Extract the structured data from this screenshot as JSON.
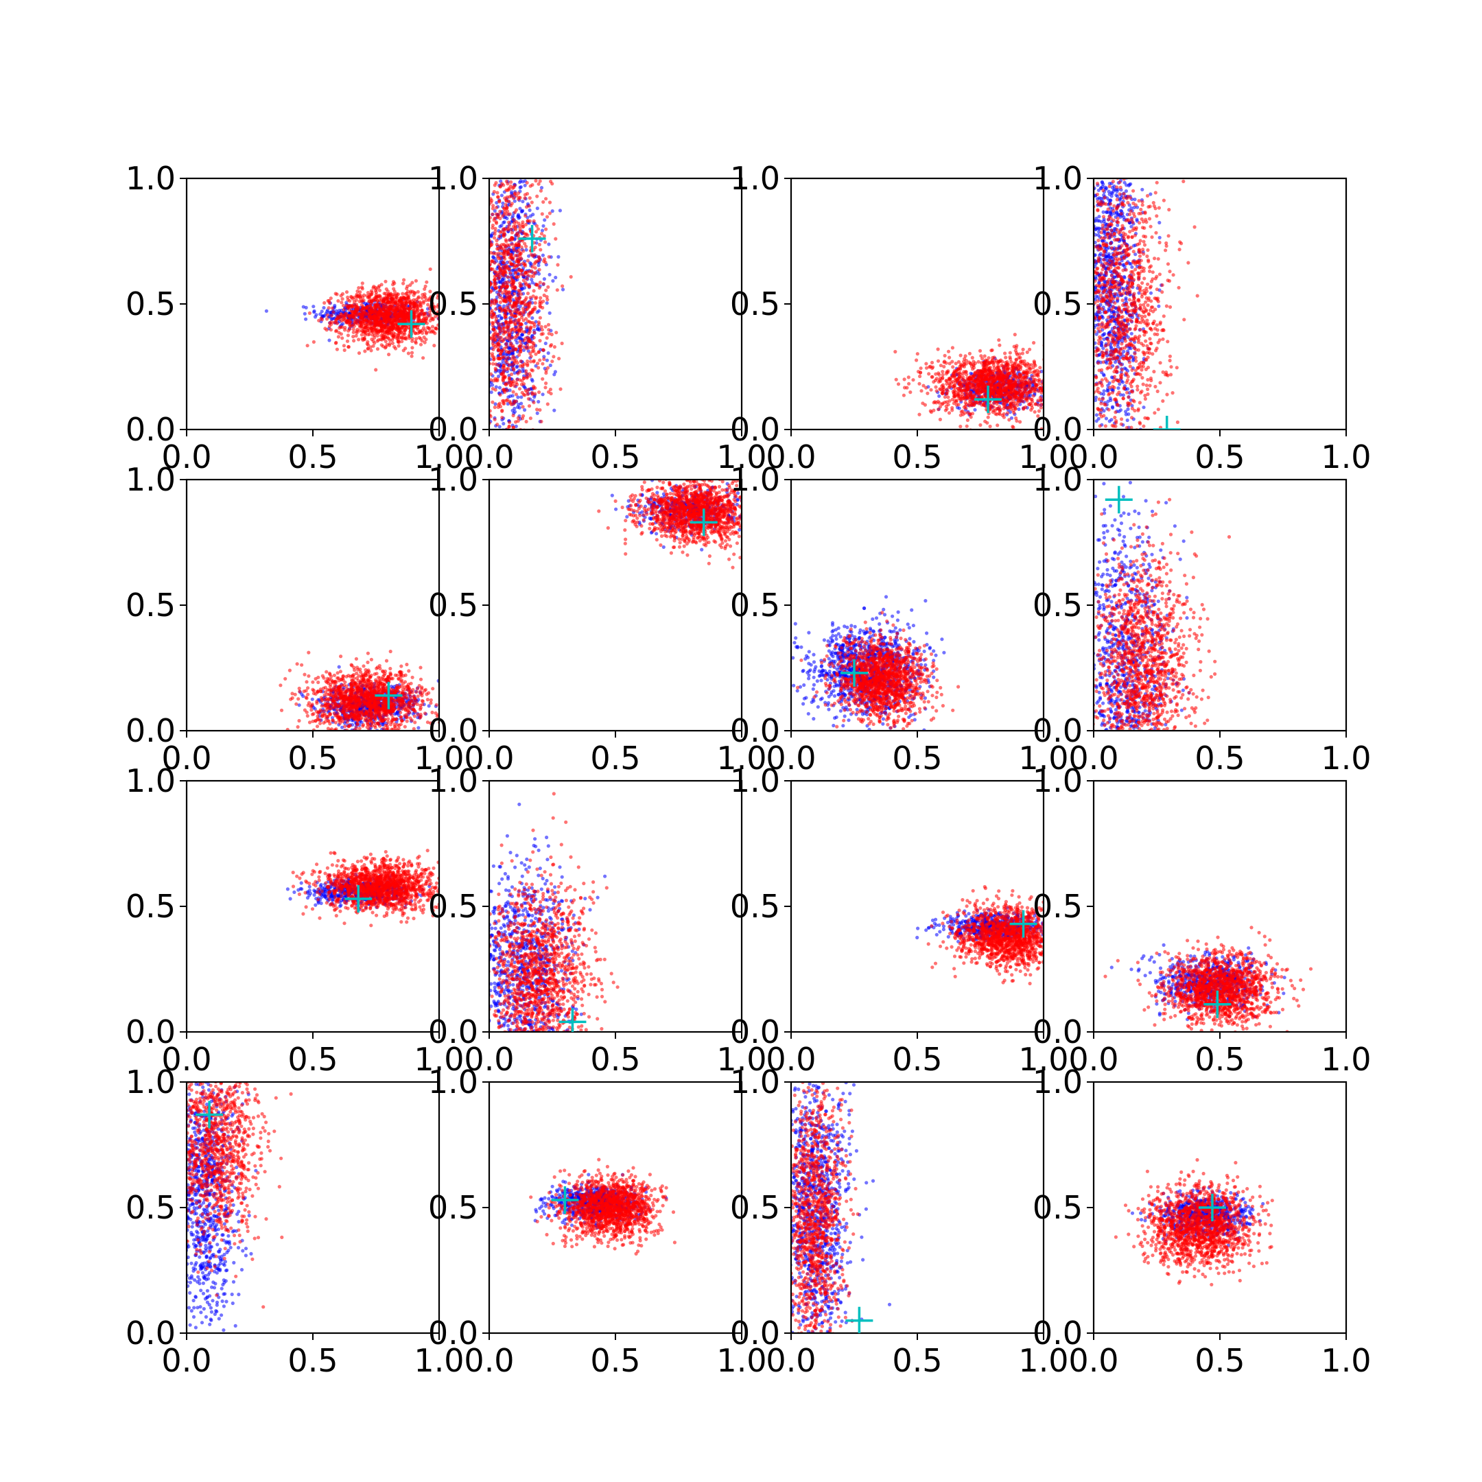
{
  "figure": {
    "background": "#ffffff",
    "axis_color": "#000000",
    "text_color": "#000000",
    "ticks": [
      "0.0",
      "0.5",
      "1.0"
    ]
  },
  "chart_data": [
    {
      "type": "scatter",
      "xlim": [
        0,
        1
      ],
      "ylim": [
        0,
        1
      ],
      "grid": false,
      "marker": [
        0.89,
        0.42
      ],
      "series": [
        {
          "color": "#0000ff",
          "center": [
            0.72,
            0.46
          ],
          "spread": [
            0.1,
            0.025
          ],
          "count": 350
        },
        {
          "color": "#ff0000",
          "center": [
            0.8,
            0.45
          ],
          "spread": [
            0.1,
            0.055
          ],
          "count": 1300
        }
      ]
    },
    {
      "type": "scatter",
      "xlim": [
        0,
        1
      ],
      "ylim": [
        0,
        1
      ],
      "grid": false,
      "marker": [
        0.17,
        0.76
      ],
      "series": [
        {
          "color": "#0000ff",
          "center": [
            0.08,
            0.5
          ],
          "spread": [
            0.07,
            0.32
          ],
          "count": 900
        },
        {
          "color": "#ff0000",
          "center": [
            0.08,
            0.5
          ],
          "spread": [
            0.08,
            0.3
          ],
          "count": 1300
        }
      ]
    },
    {
      "type": "scatter",
      "xlim": [
        0,
        1
      ],
      "ylim": [
        0,
        1
      ],
      "grid": false,
      "marker": [
        0.78,
        0.12
      ],
      "series": [
        {
          "color": "#0000ff",
          "center": [
            0.82,
            0.16
          ],
          "spread": [
            0.09,
            0.04
          ],
          "count": 400
        },
        {
          "color": "#ff0000",
          "center": [
            0.8,
            0.18
          ],
          "spread": [
            0.12,
            0.06
          ],
          "count": 1300
        }
      ]
    },
    {
      "type": "scatter",
      "xlim": [
        0,
        1
      ],
      "ylim": [
        0,
        1
      ],
      "grid": false,
      "marker": [
        0.29,
        0.0
      ],
      "series": [
        {
          "color": "#0000ff",
          "center": [
            0.07,
            0.6
          ],
          "spread": [
            0.06,
            0.32
          ],
          "count": 1000
        },
        {
          "color": "#ff0000",
          "center": [
            0.12,
            0.5
          ],
          "spread": [
            0.09,
            0.28
          ],
          "count": 1100
        }
      ]
    },
    {
      "type": "scatter",
      "xlim": [
        0,
        1
      ],
      "ylim": [
        0,
        1
      ],
      "grid": false,
      "marker": [
        0.8,
        0.14
      ],
      "series": [
        {
          "color": "#0000ff",
          "center": [
            0.72,
            0.1
          ],
          "spread": [
            0.1,
            0.04
          ],
          "count": 600
        },
        {
          "color": "#ff0000",
          "center": [
            0.72,
            0.12
          ],
          "spread": [
            0.11,
            0.06
          ],
          "count": 1300
        }
      ]
    },
    {
      "type": "scatter",
      "xlim": [
        0,
        1
      ],
      "ylim": [
        0,
        1
      ],
      "grid": false,
      "marker": [
        0.85,
        0.83
      ],
      "series": [
        {
          "color": "#0000ff",
          "center": [
            0.8,
            0.88
          ],
          "spread": [
            0.1,
            0.04
          ],
          "count": 400
        },
        {
          "color": "#ff0000",
          "center": [
            0.82,
            0.87
          ],
          "spread": [
            0.11,
            0.06
          ],
          "count": 1300
        }
      ]
    },
    {
      "type": "scatter",
      "xlim": [
        0,
        1
      ],
      "ylim": [
        0,
        1
      ],
      "grid": false,
      "marker": [
        0.25,
        0.23
      ],
      "series": [
        {
          "color": "#0000ff",
          "center": [
            0.3,
            0.24
          ],
          "spread": [
            0.11,
            0.09
          ],
          "count": 1000
        },
        {
          "color": "#ff0000",
          "center": [
            0.36,
            0.2
          ],
          "spread": [
            0.09,
            0.08
          ],
          "count": 1300
        }
      ]
    },
    {
      "type": "scatter",
      "xlim": [
        0,
        1
      ],
      "ylim": [
        0,
        1
      ],
      "grid": false,
      "marker": [
        0.1,
        0.92
      ],
      "series": [
        {
          "color": "#0000ff",
          "center": [
            0.12,
            0.25
          ],
          "spread": [
            0.09,
            0.3
          ],
          "count": 900
        },
        {
          "color": "#ff0000",
          "center": [
            0.2,
            0.25
          ],
          "spread": [
            0.1,
            0.22
          ],
          "count": 1300
        }
      ]
    },
    {
      "type": "scatter",
      "xlim": [
        0,
        1
      ],
      "ylim": [
        0,
        1
      ],
      "grid": false,
      "marker": [
        0.68,
        0.53
      ],
      "series": [
        {
          "color": "#0000ff",
          "center": [
            0.68,
            0.56
          ],
          "spread": [
            0.1,
            0.025
          ],
          "count": 500
        },
        {
          "color": "#ff0000",
          "center": [
            0.76,
            0.58
          ],
          "spread": [
            0.11,
            0.05
          ],
          "count": 1300
        }
      ]
    },
    {
      "type": "scatter",
      "xlim": [
        0,
        1
      ],
      "ylim": [
        0,
        1
      ],
      "grid": false,
      "marker": [
        0.33,
        0.04
      ],
      "series": [
        {
          "color": "#0000ff",
          "center": [
            0.13,
            0.22
          ],
          "spread": [
            0.1,
            0.22
          ],
          "count": 900
        },
        {
          "color": "#ff0000",
          "center": [
            0.2,
            0.2
          ],
          "spread": [
            0.1,
            0.2
          ],
          "count": 1300
        }
      ]
    },
    {
      "type": "scatter",
      "xlim": [
        0,
        1
      ],
      "ylim": [
        0,
        1
      ],
      "grid": false,
      "marker": [
        0.92,
        0.43
      ],
      "series": [
        {
          "color": "#0000ff",
          "center": [
            0.8,
            0.42
          ],
          "spread": [
            0.1,
            0.025
          ],
          "count": 500
        },
        {
          "color": "#ff0000",
          "center": [
            0.86,
            0.38
          ],
          "spread": [
            0.1,
            0.06
          ],
          "count": 1300
        }
      ]
    },
    {
      "type": "scatter",
      "xlim": [
        0,
        1
      ],
      "ylim": [
        0,
        1
      ],
      "grid": false,
      "marker": [
        0.49,
        0.11
      ],
      "series": [
        {
          "color": "#0000ff",
          "center": [
            0.46,
            0.2
          ],
          "spread": [
            0.1,
            0.05
          ],
          "count": 600
        },
        {
          "color": "#ff0000",
          "center": [
            0.5,
            0.17
          ],
          "spread": [
            0.11,
            0.07
          ],
          "count": 1300
        }
      ]
    },
    {
      "type": "scatter",
      "xlim": [
        0,
        1
      ],
      "ylim": [
        0,
        1
      ],
      "grid": false,
      "marker": [
        0.09,
        0.87
      ],
      "series": [
        {
          "color": "#0000ff",
          "center": [
            0.07,
            0.55
          ],
          "spread": [
            0.06,
            0.3
          ],
          "count": 900
        },
        {
          "color": "#ff0000",
          "center": [
            0.12,
            0.75
          ],
          "spread": [
            0.09,
            0.2
          ],
          "count": 1100
        }
      ]
    },
    {
      "type": "scatter",
      "xlim": [
        0,
        1
      ],
      "ylim": [
        0,
        1
      ],
      "grid": false,
      "marker": [
        0.3,
        0.53
      ],
      "series": [
        {
          "color": "#0000ff",
          "center": [
            0.42,
            0.52
          ],
          "spread": [
            0.09,
            0.035
          ],
          "count": 600
        },
        {
          "color": "#ff0000",
          "center": [
            0.48,
            0.5
          ],
          "spread": [
            0.09,
            0.06
          ],
          "count": 1300
        }
      ]
    },
    {
      "type": "scatter",
      "xlim": [
        0,
        1
      ],
      "ylim": [
        0,
        1
      ],
      "grid": false,
      "marker": [
        0.27,
        0.05
      ],
      "series": [
        {
          "color": "#0000ff",
          "center": [
            0.1,
            0.5
          ],
          "spread": [
            0.07,
            0.3
          ],
          "count": 1000
        },
        {
          "color": "#ff0000",
          "center": [
            0.09,
            0.45
          ],
          "spread": [
            0.06,
            0.28
          ],
          "count": 1100
        }
      ]
    },
    {
      "type": "scatter",
      "xlim": [
        0,
        1
      ],
      "ylim": [
        0,
        1
      ],
      "grid": false,
      "marker": [
        0.47,
        0.5
      ],
      "series": [
        {
          "color": "#0000ff",
          "center": [
            0.44,
            0.47
          ],
          "spread": [
            0.09,
            0.04
          ],
          "count": 600
        },
        {
          "color": "#ff0000",
          "center": [
            0.42,
            0.43
          ],
          "spread": [
            0.1,
            0.08
          ],
          "count": 1300
        }
      ]
    }
  ],
  "marker_style": {
    "color": "#00bfbf",
    "shape": "plus"
  }
}
